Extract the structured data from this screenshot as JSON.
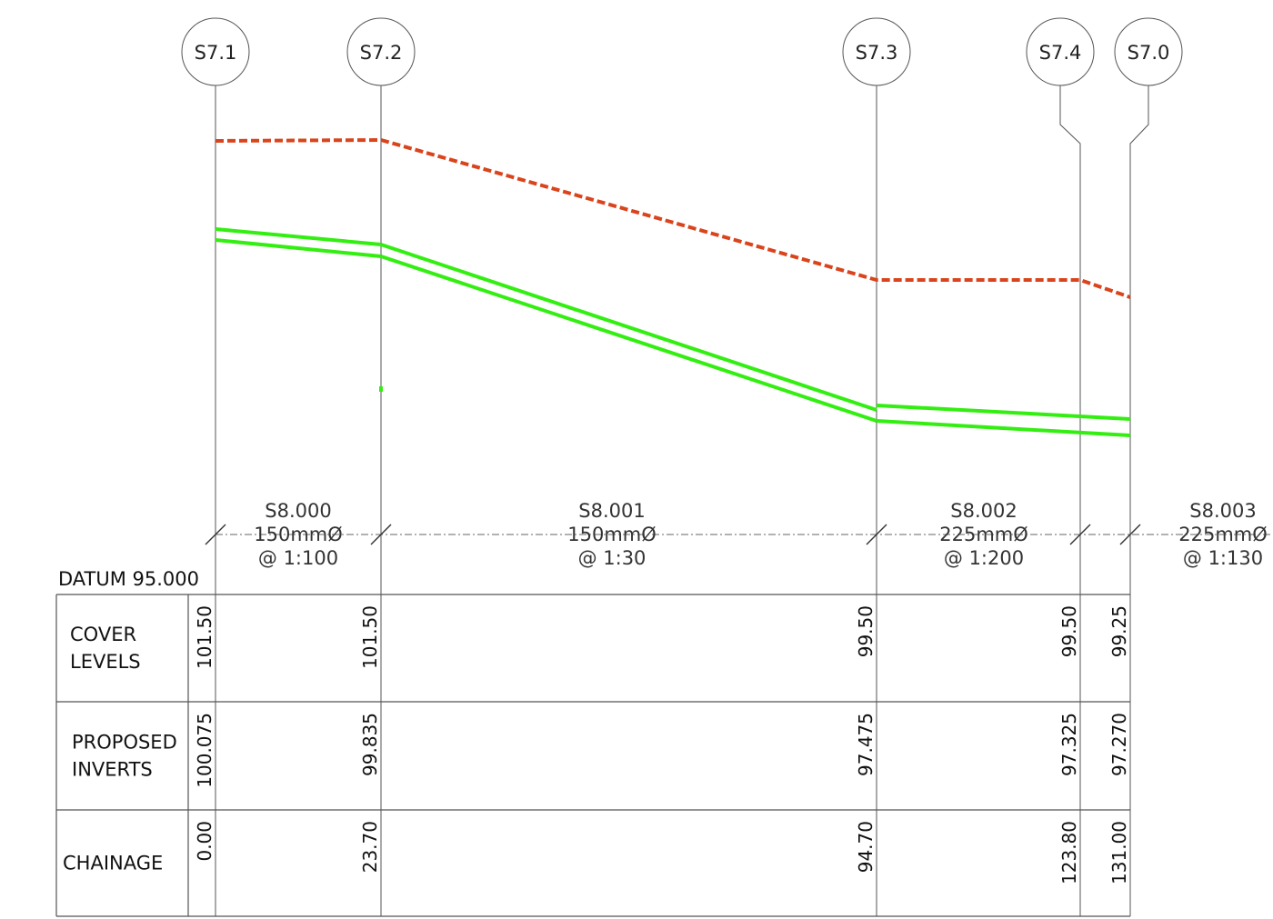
{
  "manholes": [
    {
      "id": "S7.1"
    },
    {
      "id": "S7.2"
    },
    {
      "id": "S7.3"
    },
    {
      "id": "S7.4"
    },
    {
      "id": "S7.0"
    }
  ],
  "pipes": [
    {
      "ref": "S8.000",
      "size": "150mmØ",
      "gradient": "@ 1:100"
    },
    {
      "ref": "S8.001",
      "size": "150mmØ",
      "gradient": "@ 1:30"
    },
    {
      "ref": "S8.002",
      "size": "225mmØ",
      "gradient": "@ 1:200"
    },
    {
      "ref": "S8.003",
      "size": "225mmØ",
      "gradient": "@ 1:130"
    }
  ],
  "datum": "DATUM 95.000",
  "table": {
    "rows": [
      {
        "label_lines": [
          "COVER",
          "LEVELS"
        ],
        "values": [
          "101.50",
          "101.50",
          "99.50",
          "99.50",
          "99.25"
        ]
      },
      {
        "label_lines": [
          "PROPOSED",
          "INVERTS"
        ],
        "values": [
          "100.075",
          "99.835",
          "97.475",
          "97.325",
          "97.270"
        ]
      },
      {
        "label_lines": [
          "CHAINAGE"
        ],
        "values": [
          "0.00",
          "23.70",
          "94.70",
          "123.80",
          "131.00"
        ]
      }
    ]
  },
  "colors": {
    "cover_line": "#d9441c",
    "pipe_line": "#33ee11",
    "grid": "#555555"
  }
}
